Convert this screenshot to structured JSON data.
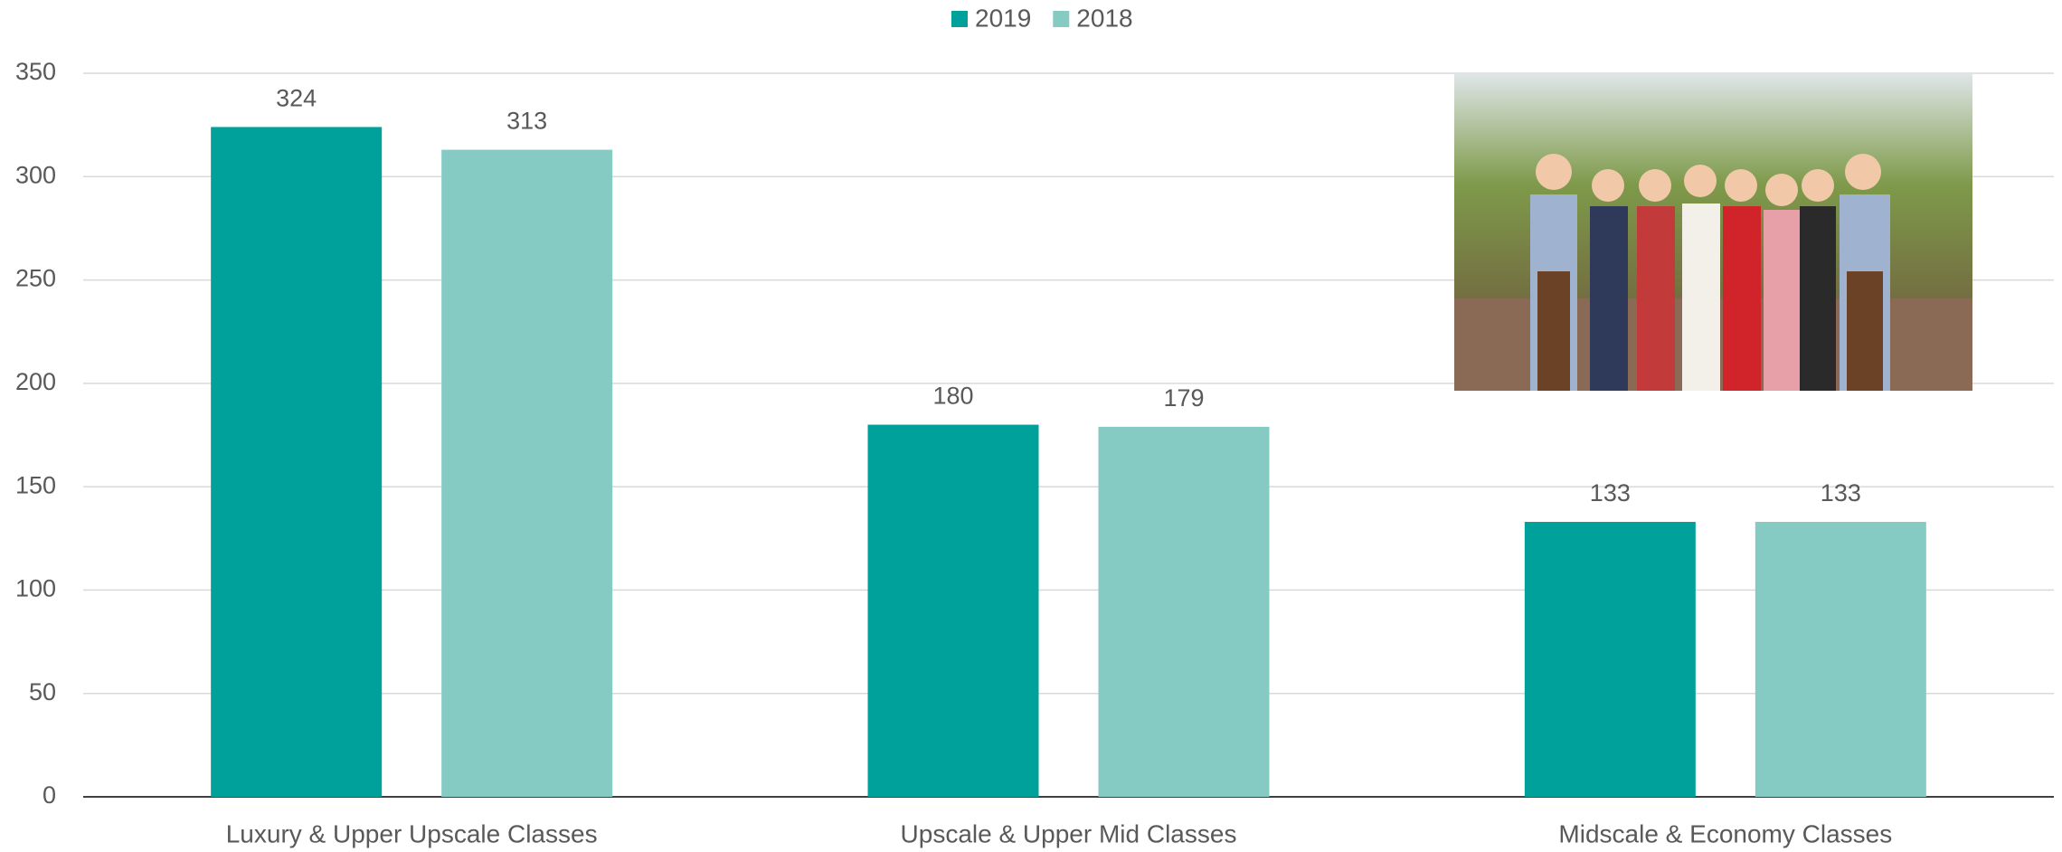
{
  "chart_data": {
    "type": "bar",
    "categories": [
      "Luxury & Upper Upscale Classes",
      "Upscale & Upper Mid Classes",
      "Midscale & Economy Classes"
    ],
    "series": [
      {
        "name": "2019",
        "color": "#00a19a",
        "values": [
          324,
          180,
          133
        ]
      },
      {
        "name": "2018",
        "color": "#85cbc4",
        "values": [
          313,
          179,
          133
        ]
      }
    ],
    "ylim": [
      0,
      350
    ],
    "yticks": [
      0,
      50,
      100,
      150,
      200,
      250,
      300,
      350
    ],
    "grid": true,
    "legend": "top"
  }
}
